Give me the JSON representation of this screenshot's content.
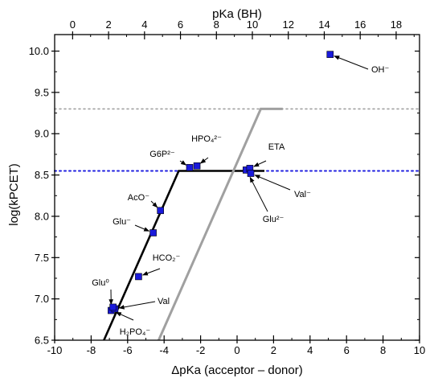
{
  "chart_data": {
    "type": "scatter",
    "xlabel_bottom": "ΔpKa (acceptor – donor)",
    "xlabel_top": "pKa (BH)",
    "ylabel": "log(kPCET)",
    "xlim": [
      -10,
      10
    ],
    "xlim_top": [
      -1,
      19.3
    ],
    "ylim": [
      6.5,
      10.2
    ],
    "x_ticks": [
      -10,
      -8,
      -6,
      -4,
      -2,
      0,
      2,
      4,
      6,
      8,
      10
    ],
    "x_ticks_top": [
      0,
      2,
      4,
      6,
      8,
      10,
      12,
      14,
      16,
      18
    ],
    "y_ticks": [
      6.5,
      7.0,
      7.5,
      8.0,
      8.5,
      9.0,
      9.5,
      10.0
    ],
    "grid": false,
    "colors": {
      "points": "#1a1adb",
      "fit_line": "#000000",
      "model_line": "#a0a0a0",
      "upper_dotted": "#a0a0a0",
      "plateau_dotted": "#2020e0"
    },
    "reference_lines": [
      {
        "y": 9.3,
        "style": "dotted",
        "color": "#a0a0a0"
      },
      {
        "y": 8.55,
        "style": "dotted",
        "color": "#2020e0"
      }
    ],
    "series": [
      {
        "kind": "points",
        "points": [
          {
            "x": -6.9,
            "y": 6.86
          },
          {
            "x": -6.7,
            "y": 6.88
          },
          {
            "x": -6.8,
            "y": 6.9
          },
          {
            "x": -5.4,
            "y": 7.27
          },
          {
            "x": -4.6,
            "y": 7.8
          },
          {
            "x": -4.2,
            "y": 8.07
          },
          {
            "x": -2.6,
            "y": 8.59
          },
          {
            "x": -2.2,
            "y": 8.61
          },
          {
            "x": 0.5,
            "y": 8.56
          },
          {
            "x": 0.7,
            "y": 8.58
          },
          {
            "x": 0.75,
            "y": 8.52
          },
          {
            "x": 5.1,
            "y": 9.96
          }
        ]
      },
      {
        "kind": "line",
        "style": "black",
        "points": [
          {
            "x": -7.3,
            "y": 6.5
          },
          {
            "x": -3.2,
            "y": 8.55
          },
          {
            "x": 1.5,
            "y": 8.55
          }
        ]
      },
      {
        "kind": "line",
        "style": "gray",
        "points": [
          {
            "x": -4.3,
            "y": 6.5
          },
          {
            "x": 1.3,
            "y": 9.3
          },
          {
            "x": 2.5,
            "y": 9.3
          }
        ]
      }
    ],
    "annotations": [
      {
        "label": "OH⁻",
        "x": 5.1,
        "y": 9.96
      },
      {
        "label": "HPO₄²⁻",
        "x": -2.2,
        "y": 8.61
      },
      {
        "label": "G6P²⁻",
        "x": -2.6,
        "y": 8.59
      },
      {
        "label": "ETA",
        "x": 0.7,
        "y": 8.58
      },
      {
        "label": "Val⁻",
        "x": 0.75,
        "y": 8.52
      },
      {
        "label": "Glu²⁻",
        "x": 0.6,
        "y": 8.52
      },
      {
        "label": "AcO⁻",
        "x": -4.2,
        "y": 8.07
      },
      {
        "label": "Glu⁻",
        "x": -4.6,
        "y": 7.8
      },
      {
        "label": "HCO₂⁻",
        "x": -5.4,
        "y": 7.27
      },
      {
        "label": "Glu⁰",
        "x": -6.9,
        "y": 6.88
      },
      {
        "label": "Val",
        "x": -6.7,
        "y": 6.88
      },
      {
        "label": "H₂PO₄⁻",
        "x": -6.85,
        "y": 6.86
      }
    ]
  }
}
